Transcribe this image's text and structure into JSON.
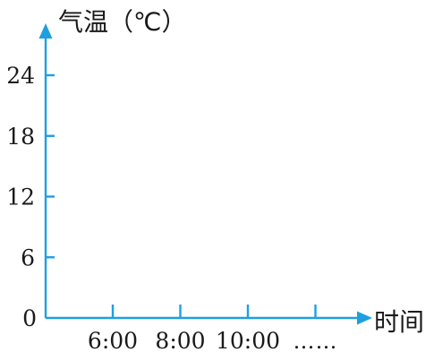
{
  "chart_data": {
    "type": "line",
    "ylabel": "气温（℃）",
    "xlabel": "时间",
    "y_ticks": [
      "0",
      "6",
      "12",
      "18",
      "24"
    ],
    "y_tick_values": [
      0,
      6,
      12,
      18,
      24
    ],
    "x_ticks": [
      "6:00",
      "8:00",
      "10:00",
      "……"
    ],
    "ylim": [
      0,
      24
    ],
    "series": [],
    "grid": false
  },
  "colors": {
    "axis": "#1e9fe0",
    "text": "#1a1a1a"
  }
}
